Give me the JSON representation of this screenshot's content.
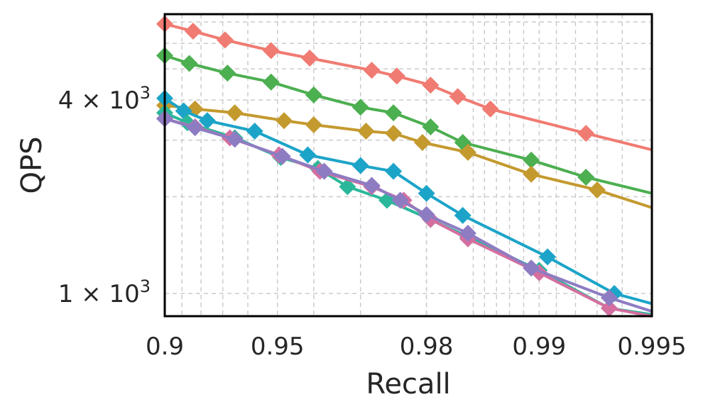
{
  "chart_data": {
    "type": "line",
    "xlabel": "Recall",
    "ylabel": "QPS",
    "xscale": "log(1-recall)",
    "yscale": "log",
    "xlim": [
      0.9,
      0.995
    ],
    "ylim": [
      850,
      7400
    ],
    "grid": true,
    "x_ticks_major": [
      "0.9",
      "0.95",
      "0.98",
      "0.99",
      "0.995"
    ],
    "y_ticks_major": [
      {
        "value": 1000,
        "mantissa": "1",
        "exponent": "3"
      },
      {
        "value": 4000,
        "mantissa": "4",
        "exponent": "3"
      }
    ],
    "series": [
      {
        "color": "#f07b72",
        "points": [
          [
            0.9,
            6900
          ],
          [
            0.916,
            6550
          ],
          [
            0.931,
            6150
          ],
          [
            0.948,
            5700
          ],
          [
            0.959,
            5400
          ],
          [
            0.972,
            4950
          ],
          [
            0.976,
            4750
          ],
          [
            0.9805,
            4450
          ],
          [
            0.9835,
            4100
          ],
          [
            0.9865,
            3750
          ],
          [
            0.9925,
            3150
          ],
          [
            0.995,
            2800
          ]
        ]
      },
      {
        "color": "#4caf50",
        "points": [
          [
            0.9,
            5500
          ],
          [
            0.914,
            5200
          ],
          [
            0.932,
            4850
          ],
          [
            0.948,
            4550
          ],
          [
            0.96,
            4150
          ],
          [
            0.97,
            3800
          ],
          [
            0.9755,
            3650
          ],
          [
            0.9805,
            3300
          ],
          [
            0.984,
            2950
          ],
          [
            0.9895,
            2600
          ],
          [
            0.9925,
            2300
          ],
          [
            0.995,
            2050
          ]
        ]
      },
      {
        "color": "#c49a2f",
        "points": [
          [
            0.9,
            3850
          ],
          [
            0.917,
            3750
          ],
          [
            0.935,
            3650
          ],
          [
            0.952,
            3450
          ],
          [
            0.96,
            3350
          ],
          [
            0.971,
            3200
          ],
          [
            0.9755,
            3150
          ],
          [
            0.9795,
            2950
          ],
          [
            0.9845,
            2750
          ],
          [
            0.9895,
            2350
          ],
          [
            0.993,
            2100
          ],
          [
            0.995,
            1850
          ]
        ]
      },
      {
        "color": "#1ca4c8",
        "points": [
          [
            0.9,
            4050
          ],
          [
            0.911,
            3700
          ],
          [
            0.923,
            3450
          ],
          [
            0.9425,
            3200
          ],
          [
            0.9585,
            2700
          ],
          [
            0.97,
            2500
          ],
          [
            0.9755,
            2400
          ],
          [
            0.98,
            2050
          ],
          [
            0.984,
            1750
          ],
          [
            0.9905,
            1300
          ],
          [
            0.9937,
            1000
          ],
          [
            0.995,
            930
          ]
        ]
      },
      {
        "color": "#2bb89a",
        "points": [
          [
            0.9,
            3650
          ],
          [
            0.913,
            3400
          ],
          [
            0.935,
            3050
          ],
          [
            0.951,
            2650
          ],
          [
            0.961,
            2450
          ],
          [
            0.9675,
            2150
          ],
          [
            0.9745,
            1950
          ],
          [
            0.9805,
            1700
          ],
          [
            0.9845,
            1500
          ],
          [
            0.99,
            1180
          ],
          [
            0.9935,
            900
          ],
          [
            0.995,
            860
          ]
        ]
      },
      {
        "color": "#d46fa0",
        "points": [
          [
            0.9,
            3500
          ],
          [
            0.917,
            3300
          ],
          [
            0.933,
            3050
          ],
          [
            0.9505,
            2700
          ],
          [
            0.9615,
            2400
          ],
          [
            0.972,
            2150
          ],
          [
            0.977,
            1950
          ],
          [
            0.9805,
            1700
          ],
          [
            0.9845,
            1480
          ],
          [
            0.99,
            1160
          ],
          [
            0.9935,
            900
          ],
          [
            0.995,
            850
          ]
        ]
      },
      {
        "color": "#8e7cc3",
        "points": [
          [
            0.9,
            3500
          ],
          [
            0.917,
            3280
          ],
          [
            0.935,
            3020
          ],
          [
            0.9515,
            2670
          ],
          [
            0.9625,
            2400
          ],
          [
            0.972,
            2170
          ],
          [
            0.9765,
            1950
          ],
          [
            0.98,
            1760
          ],
          [
            0.9845,
            1540
          ],
          [
            0.9895,
            1200
          ],
          [
            0.9935,
            970
          ],
          [
            0.995,
            880
          ]
        ]
      }
    ]
  }
}
